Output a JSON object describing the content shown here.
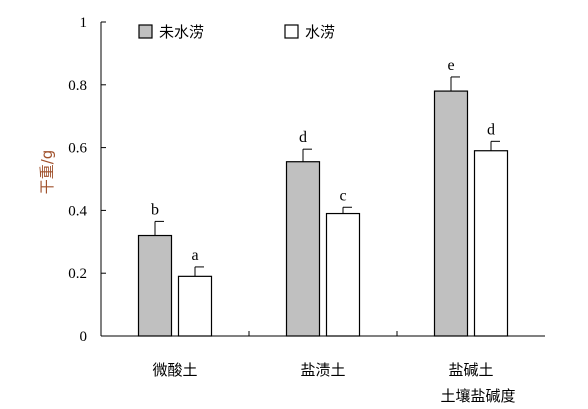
{
  "chart_data": {
    "type": "bar",
    "xlabel": "土壤盐碱度",
    "ylabel": "干重/g",
    "ylim": [
      0,
      1
    ],
    "yticks": [
      "0",
      "0.2",
      "0.4",
      "0.6",
      "0.8",
      "1"
    ],
    "categories": [
      "微酸土",
      "盐渍土",
      "盐碱土"
    ],
    "series": [
      {
        "name": "未水涝",
        "color": "#c0c0c0",
        "values": [
          0.32,
          0.555,
          0.78
        ],
        "errors": [
          0.045,
          0.04,
          0.045
        ],
        "labels": [
          "b",
          "d",
          "e"
        ]
      },
      {
        "name": "水涝",
        "color": "#ffffff",
        "values": [
          0.19,
          0.39,
          0.59
        ],
        "errors": [
          0.03,
          0.02,
          0.03
        ],
        "labels": [
          "a",
          "c",
          "d"
        ]
      }
    ],
    "legend": "top-left",
    "grid": false
  }
}
